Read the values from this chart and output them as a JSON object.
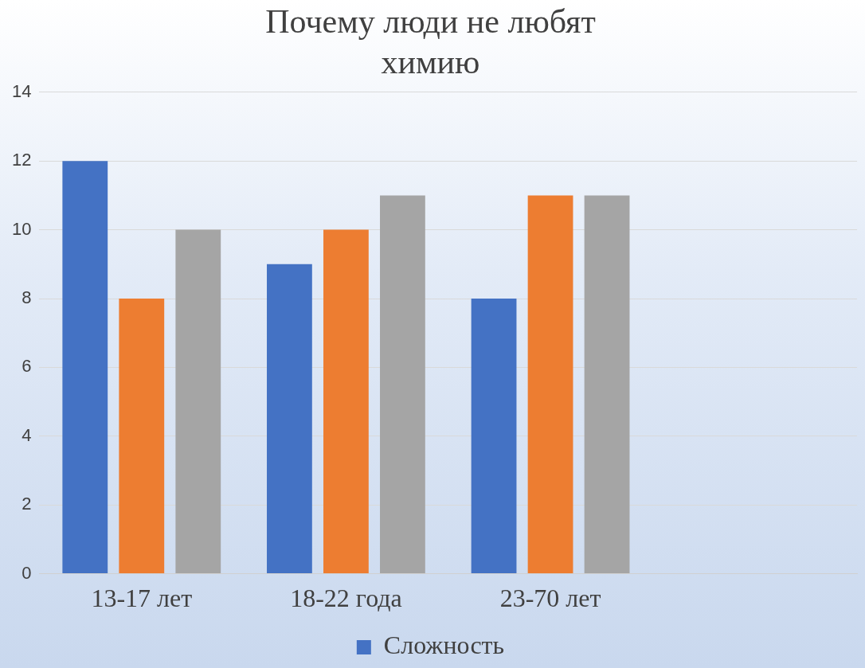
{
  "chart_data": {
    "type": "bar",
    "title": "Почему люди не любят химию",
    "categories": [
      "13-17 лет",
      "18-22 года",
      "23-70 лет",
      null
    ],
    "series": [
      {
        "name": "Сложность",
        "color": "#4472c4",
        "values": [
          12,
          9,
          8,
          null
        ]
      },
      {
        "color": "#ed7d31",
        "values": [
          8,
          10,
          11,
          null
        ]
      },
      {
        "color": "#a5a5a5",
        "values": [
          10,
          11,
          11,
          null
        ]
      }
    ],
    "ylim": [
      0,
      14
    ],
    "yticks": [
      0,
      2,
      4,
      6,
      8,
      10,
      12,
      14
    ],
    "grid": "y",
    "legend": "bottom"
  }
}
